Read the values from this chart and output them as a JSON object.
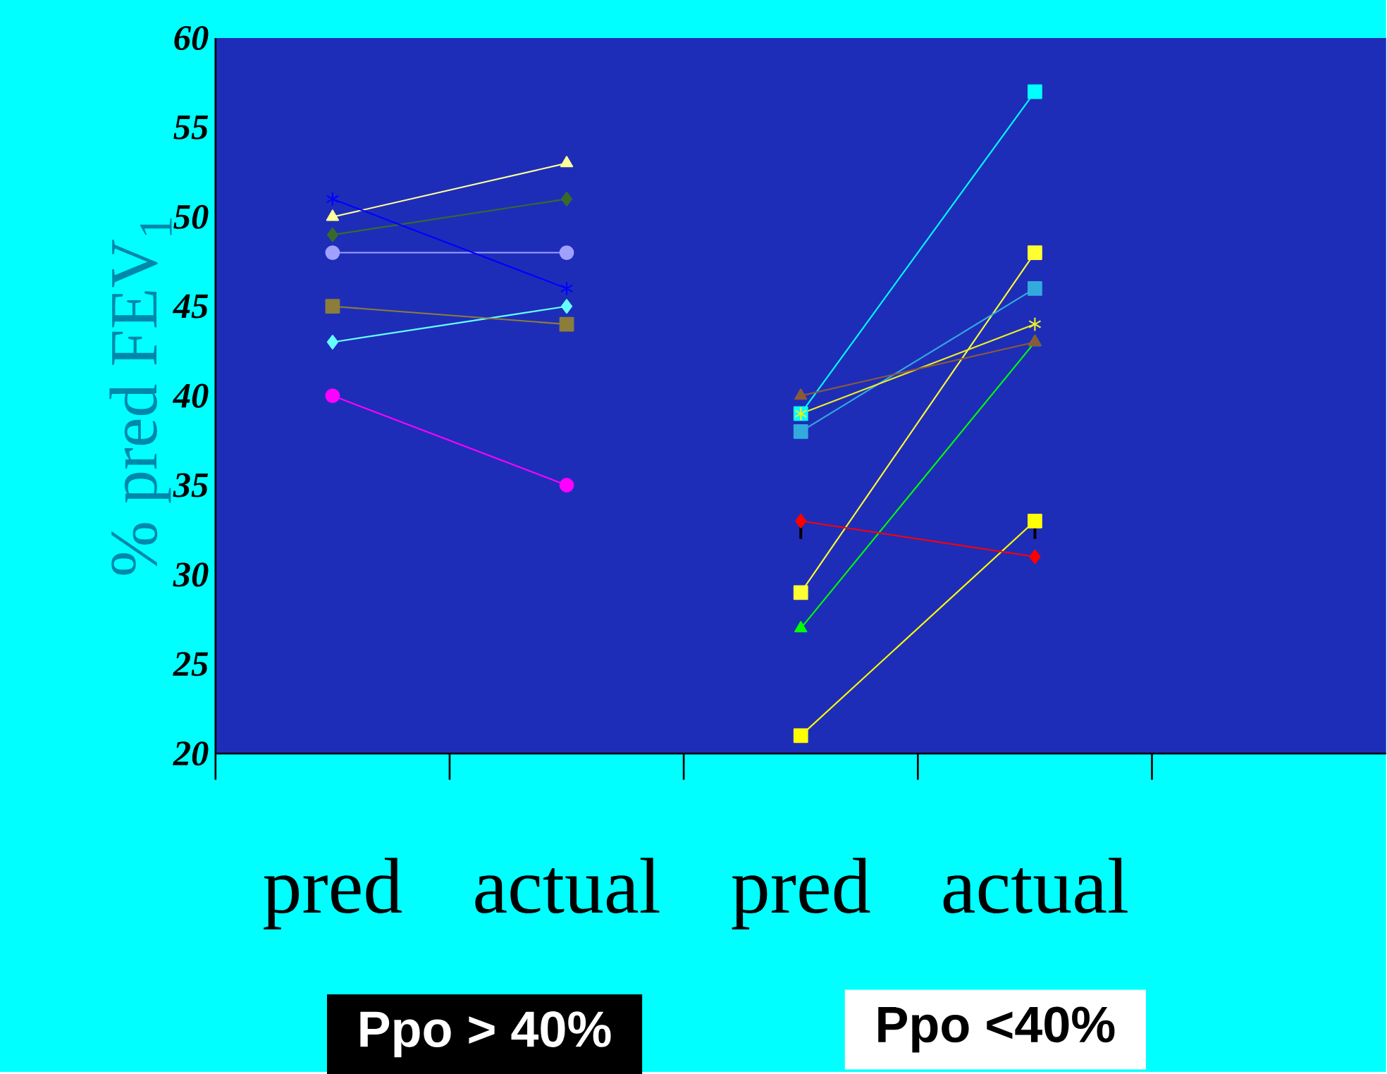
{
  "chart_data": {
    "type": "line",
    "ylabel": "% pred FEV$_{1}$",
    "categories": [
      "pred",
      "actual",
      "pred",
      "actual",
      null
    ],
    "ylim": [
      20,
      60
    ],
    "yticks": [
      20,
      25,
      30,
      35,
      40,
      45,
      50,
      55,
      60
    ],
    "grid": false,
    "line_style": "solid",
    "annotations": [
      "Ppo > 40%",
      "Ppo <40%"
    ],
    "series": [
      {
        "color": "#ff00ff",
        "marker": "circle",
        "values": [
          40,
          35,
          null,
          null,
          null
        ]
      },
      {
        "color": "#66ffff",
        "marker": "diamond",
        "values": [
          43,
          45,
          null,
          null,
          null
        ]
      },
      {
        "color": "#8b7d3a",
        "marker": "square",
        "values": [
          45,
          44,
          null,
          null,
          null
        ]
      },
      {
        "color": "#a0a0ff",
        "marker": "circle",
        "values": [
          48,
          48,
          null,
          null,
          null
        ]
      },
      {
        "color": "#3a6a2a",
        "marker": "diamond",
        "values": [
          49,
          51,
          null,
          null,
          null
        ]
      },
      {
        "color": "#ffff99",
        "marker": "triangle",
        "values": [
          50,
          53,
          null,
          null,
          null
        ]
      },
      {
        "color": "#0000ff",
        "marker": "cross",
        "values": [
          51,
          46,
          null,
          null,
          null
        ]
      },
      {
        "color": "#ffff00",
        "marker": "square",
        "values": [
          null,
          null,
          21,
          33,
          null
        ],
        "errors": [
          null,
          null,
          null,
          [
            32,
            33
          ],
          null
        ]
      },
      {
        "color": "#00ff00",
        "marker": "triangle",
        "values": [
          null,
          null,
          27,
          43,
          null
        ]
      },
      {
        "color": "#ffff33",
        "marker": "square",
        "values": [
          null,
          null,
          29,
          48,
          null
        ]
      },
      {
        "color": "#ff0000",
        "marker": "diamond",
        "values": [
          null,
          null,
          33,
          31,
          null
        ],
        "errors": [
          null,
          null,
          [
            32,
            33
          ],
          null,
          null
        ]
      },
      {
        "color": "#33aadd",
        "marker": "square",
        "values": [
          null,
          null,
          38,
          46,
          null
        ]
      },
      {
        "color": "#00ffff",
        "marker": "square",
        "values": [
          null,
          null,
          39,
          57,
          null
        ]
      },
      {
        "color": "#eeee22",
        "marker": "cross",
        "values": [
          null,
          null,
          39,
          44,
          null
        ]
      },
      {
        "color": "#8b5a3a",
        "marker": "triangle",
        "values": [
          null,
          null,
          40,
          43,
          null
        ]
      }
    ]
  }
}
